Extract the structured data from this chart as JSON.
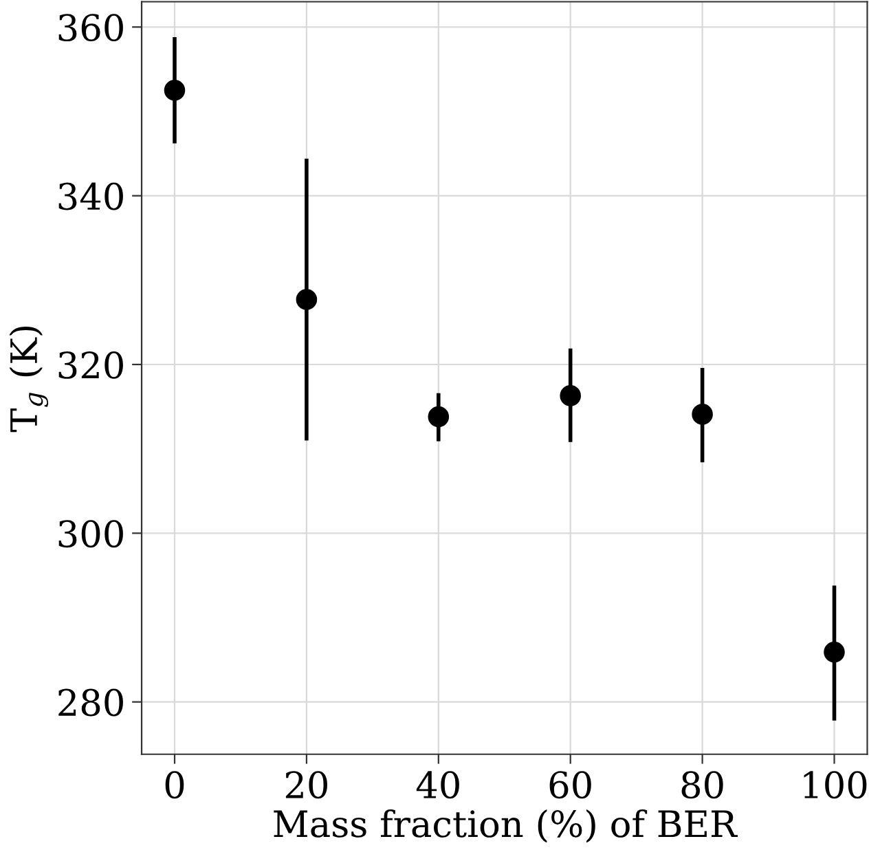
{
  "chart_data": {
    "type": "scatter",
    "x": [
      0,
      20,
      40,
      60,
      80,
      100
    ],
    "series": [
      {
        "color": "#000000",
        "values": [
          352.5,
          327.7,
          313.8,
          316.3,
          314.1,
          285.9
        ],
        "errors": [
          [
            346.2,
            358.8
          ],
          [
            311.0,
            344.4
          ],
          [
            310.9,
            316.6
          ],
          [
            310.8,
            321.9
          ],
          [
            308.4,
            319.6
          ],
          [
            277.8,
            293.8
          ]
        ]
      }
    ],
    "xlabel": "Mass fraction (%) of BER",
    "ylabel": "T$_{g}$ (K)",
    "xlim": [
      -5,
      105
    ],
    "ylim": [
      273.8,
      363
    ],
    "xticks": [
      0,
      20,
      40,
      60,
      80,
      100
    ],
    "yticks": [
      280,
      300,
      320,
      340,
      360
    ],
    "grid": true,
    "marker": "circle"
  }
}
